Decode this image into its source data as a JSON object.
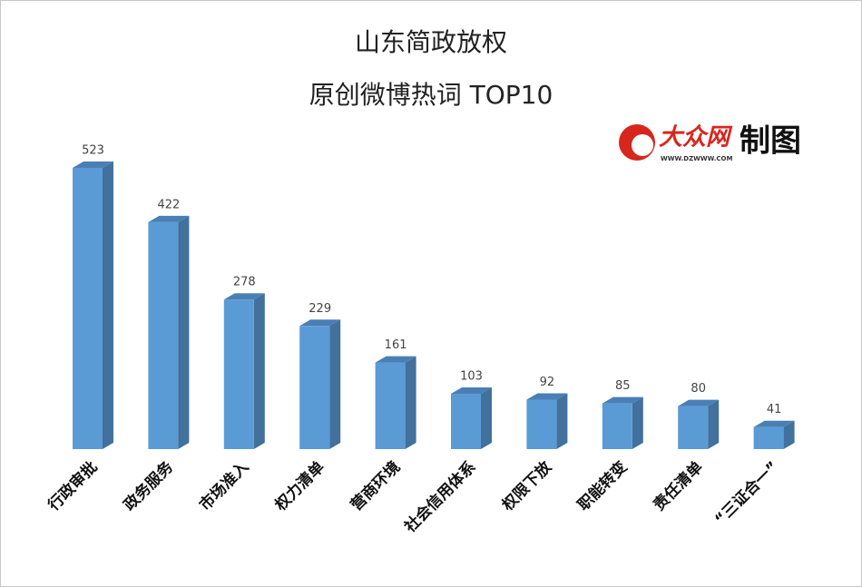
{
  "chart_data": {
    "type": "bar3d",
    "title": "山东简政放权",
    "subtitle": "原创微博热词 TOP10",
    "source": {
      "brand": "大众网",
      "url": "WWW.DZWWW.COM",
      "note": "制图"
    },
    "categories": [
      "行政审批",
      "政务服务",
      "市场准入",
      "权力清单",
      "营商环境",
      "社会信用体系",
      "权限下放",
      "职能转变",
      "责任清单",
      "“三证合一”"
    ],
    "values": [
      523,
      422,
      278,
      229,
      161,
      103,
      92,
      85,
      80,
      41
    ],
    "color": "#5b9bd5"
  }
}
